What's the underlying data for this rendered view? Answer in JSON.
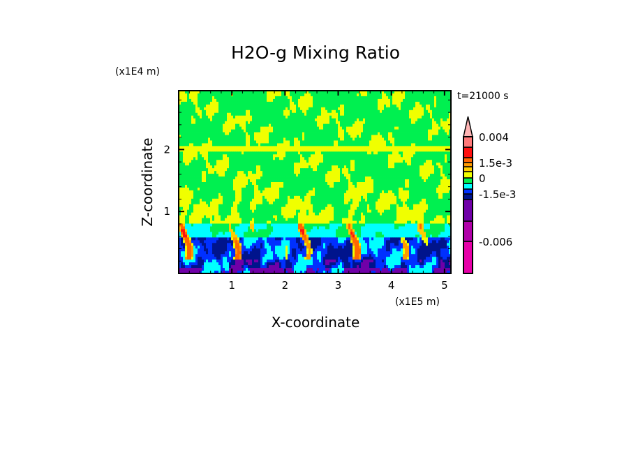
{
  "chart_data": {
    "type": "heatmap",
    "title": "H2O-g Mixing Ratio",
    "xlabel": "X-coordinate",
    "ylabel": "Z-coordinate",
    "x_unit": "(x1E5 m)",
    "y_unit": "(x1E4 m)",
    "time_label": "t=21000 s",
    "xlim": [
      0,
      5.12
    ],
    "ylim": [
      0,
      2.95
    ],
    "x_ticks": [
      1,
      2,
      3,
      4,
      5
    ],
    "x_tick_labels": [
      "1",
      "2",
      "3",
      "4",
      "5"
    ],
    "y_ticks": [
      1,
      2
    ],
    "y_tick_labels": [
      "1",
      "2"
    ],
    "colorbar": {
      "labels": [
        {
          "text": "0.004",
          "segment": 12
        },
        {
          "text": "1.5e-3",
          "segment": 9
        },
        {
          "text": "0",
          "segment": 7
        },
        {
          "text": "-1.5e-3",
          "segment": 4
        },
        {
          "text": "-0.006",
          "segment": 1
        }
      ],
      "colors_bottom_to_top": [
        "#e600a8",
        "#b000a8",
        "#7000a8",
        "#00148c",
        "#0030ff",
        "#00ffff",
        "#00f050",
        "#f0ff00",
        "#ffcc00",
        "#ff9900",
        "#ff6600",
        "#ff1010",
        "#ff7878"
      ],
      "extend_color": "#ffb4b4"
    }
  }
}
